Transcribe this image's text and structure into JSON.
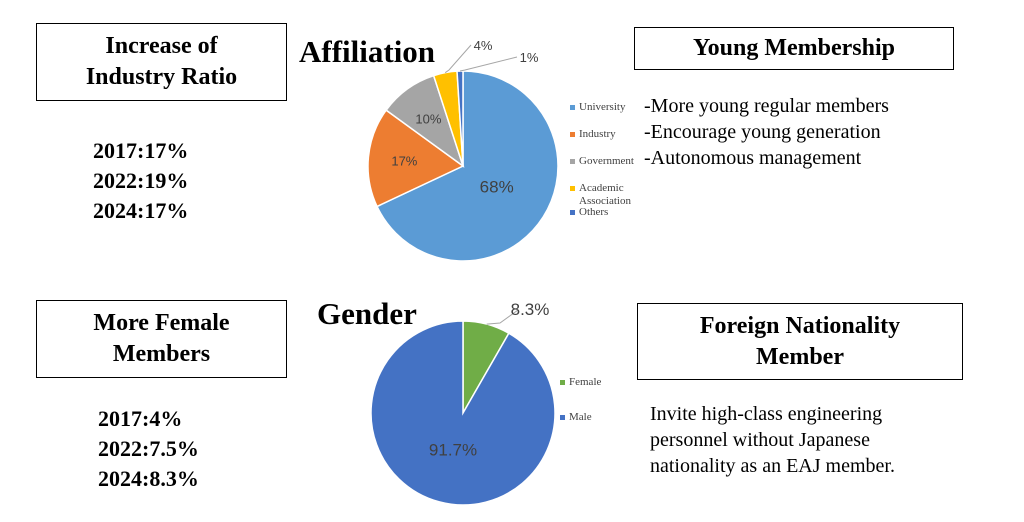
{
  "panels": {
    "industry": {
      "title": "Increase of\nIndustry Ratio",
      "stats": [
        "2017:17%",
        "2022:19%",
        "2024:17%"
      ]
    },
    "female": {
      "title": "More Female\nMembers",
      "stats": [
        "2017:4%",
        "2022:7.5%",
        "2024:8.3%"
      ]
    },
    "young": {
      "title": "Young Membership",
      "points": [
        "-More young regular members",
        "-Encourage young generation",
        "-Autonomous management"
      ]
    },
    "foreign": {
      "title": "Foreign Nationality\nMember",
      "text": [
        "Invite high-class engineering",
        "personnel without Japanese",
        "nationality as an EAJ member."
      ]
    }
  },
  "chart_data": [
    {
      "type": "pie",
      "title": "Affiliation",
      "categories": [
        "University",
        "Industry",
        "Government",
        "Academic Association",
        "Others"
      ],
      "values": [
        68,
        17,
        10,
        4,
        1
      ],
      "labels": [
        "68%",
        "17%",
        "10%",
        "4%",
        "1%"
      ],
      "colors": [
        "#5b9bd5",
        "#ed7d31",
        "#a5a5a5",
        "#ffc000",
        "#4472c4"
      ],
      "legend": "right"
    },
    {
      "type": "pie",
      "title": "Gender",
      "categories": [
        "Female",
        "Male"
      ],
      "values": [
        8.3,
        91.7
      ],
      "labels": [
        "8.3%",
        "91.7%"
      ],
      "colors": [
        "#70ad47",
        "#4472c4"
      ],
      "legend": "right"
    }
  ]
}
